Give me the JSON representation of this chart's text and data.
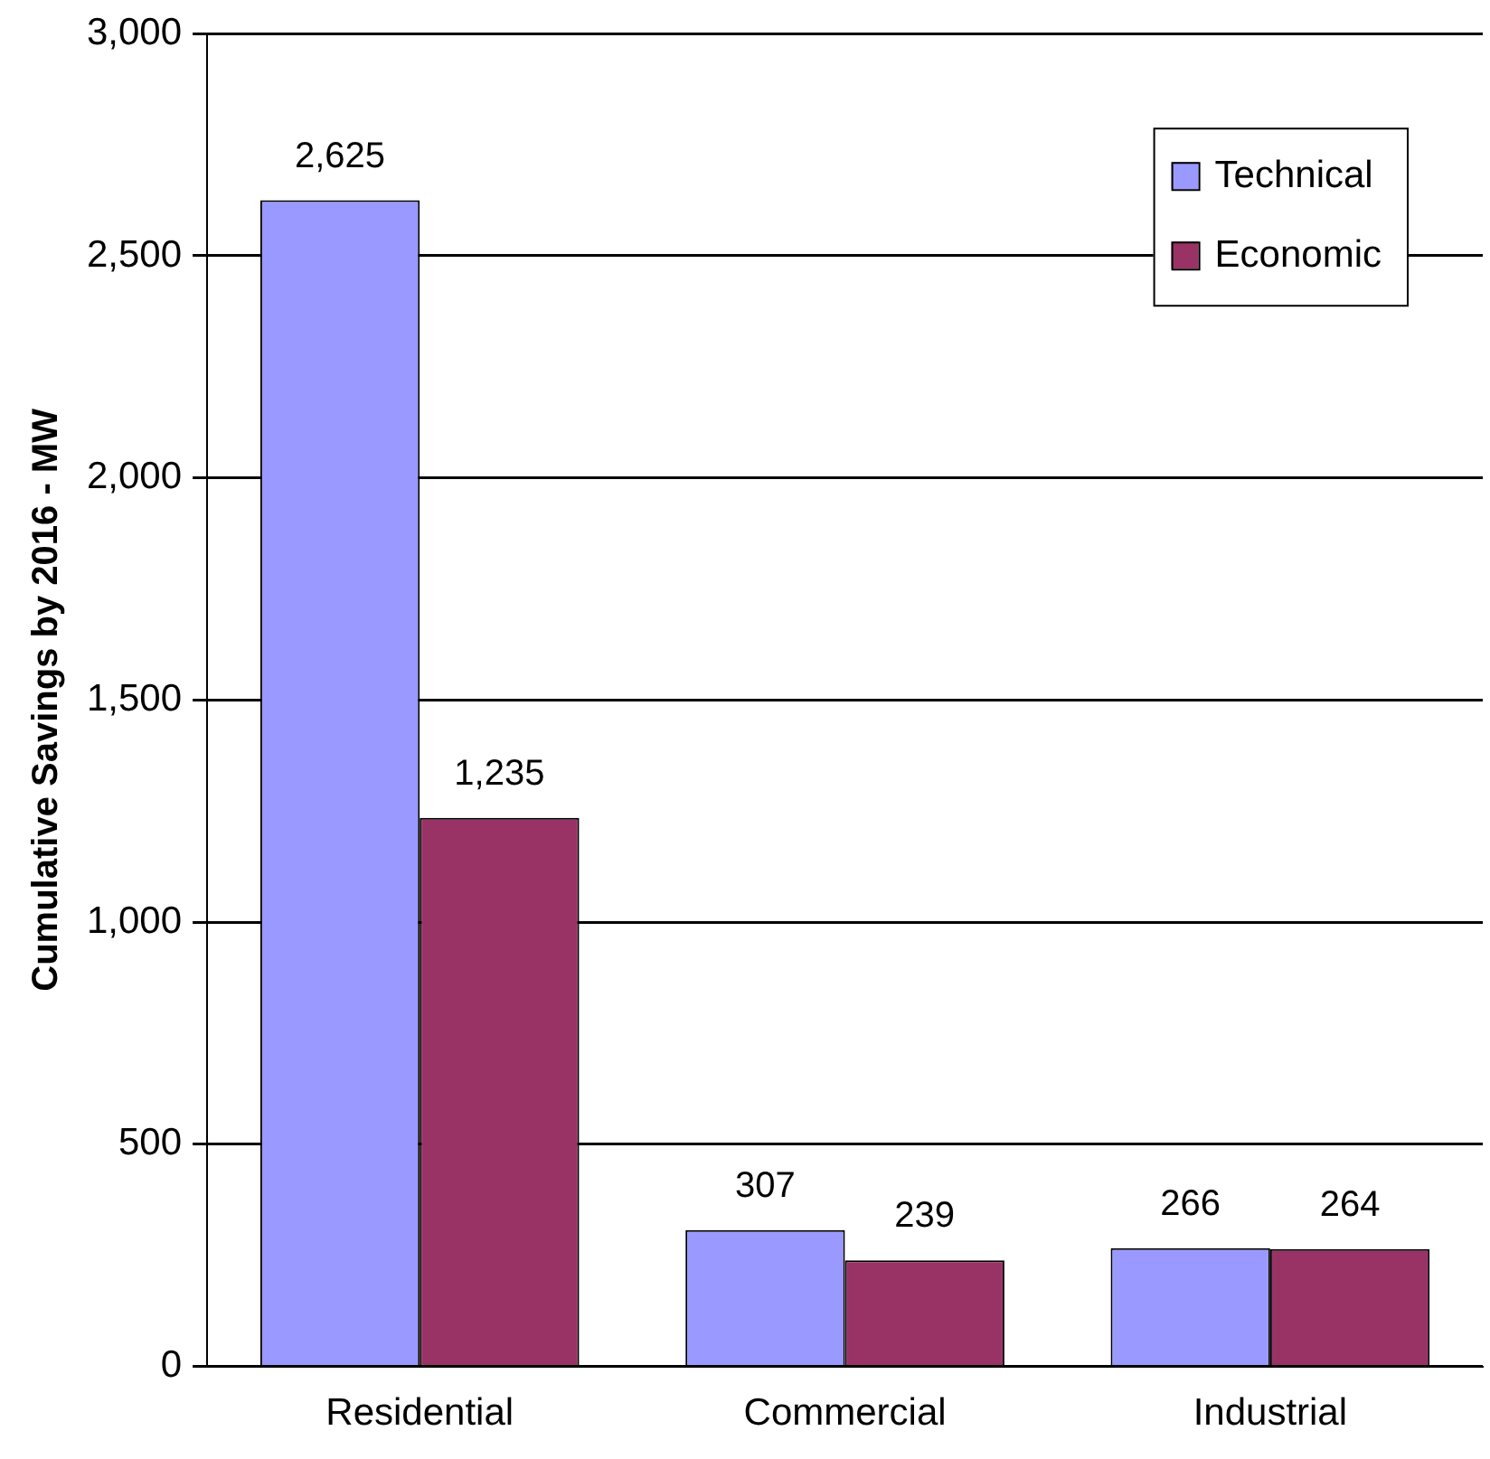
{
  "chart_data": {
    "type": "bar",
    "ylabel": "Cumulative Savings by 2016 - MW",
    "categories": [
      "Residential",
      "Commercial",
      "Industrial"
    ],
    "series": [
      {
        "name": "Technical",
        "color": "#9999ff",
        "values": [
          2625,
          307,
          266
        ],
        "value_labels": [
          "2,625",
          "307",
          "266"
        ]
      },
      {
        "name": "Economic",
        "color": "#993366",
        "values": [
          1235,
          239,
          264
        ],
        "value_labels": [
          "1,235",
          "239",
          "264"
        ]
      }
    ],
    "ylim": [
      0,
      3000
    ],
    "yticks": [
      {
        "value": 0,
        "label": "0"
      },
      {
        "value": 500,
        "label": "500"
      },
      {
        "value": 1000,
        "label": "1,000"
      },
      {
        "value": 1500,
        "label": "1,500"
      },
      {
        "value": 2000,
        "label": "2,000"
      },
      {
        "value": 2500,
        "label": "2,500"
      },
      {
        "value": 3000,
        "label": "3,000"
      }
    ],
    "grid": "y",
    "legend": "top right"
  }
}
